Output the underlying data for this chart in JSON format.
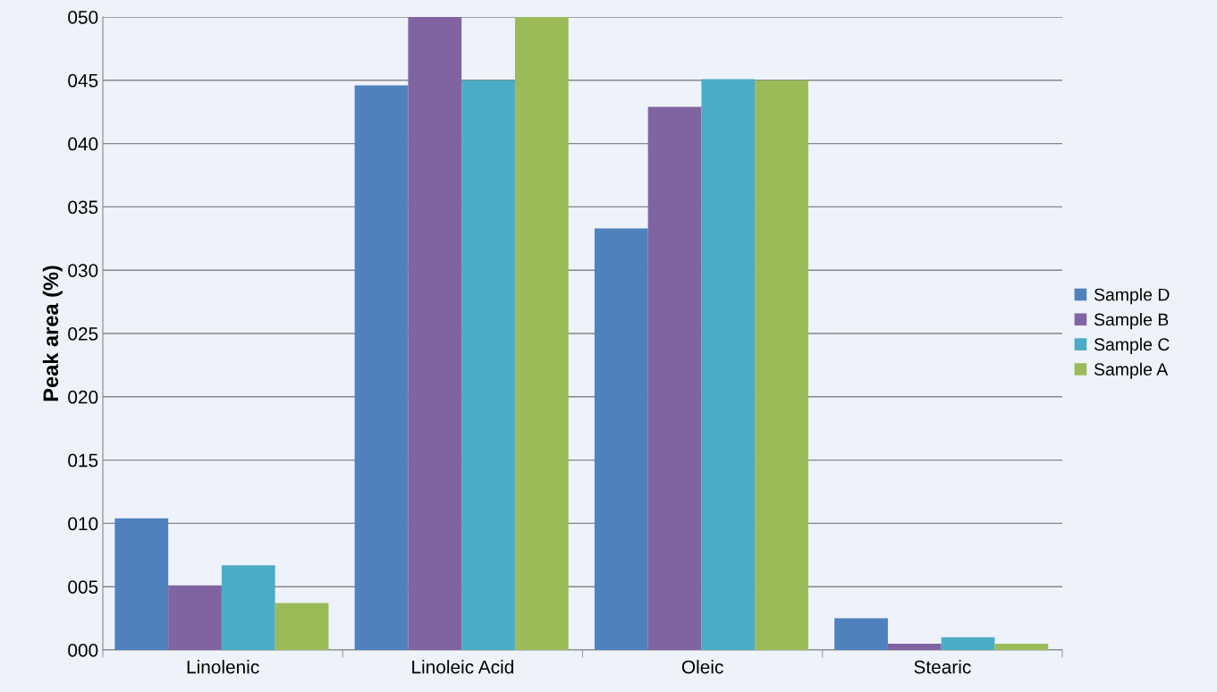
{
  "chart_data": {
    "type": "bar",
    "ylabel": "Peak area (%)",
    "categories": [
      "Linolenic",
      "Linoleic Acid",
      "Oleic",
      "Stearic"
    ],
    "series": [
      {
        "name": "Sample D",
        "color": "#4f81bd",
        "values": [
          10.4,
          44.6,
          33.3,
          2.5
        ]
      },
      {
        "name": "Sample B",
        "color": "#8064a2",
        "values": [
          5.1,
          50,
          42.9,
          0.5
        ]
      },
      {
        "name": "Sample C",
        "color": "#4bacc6",
        "values": [
          6.7,
          45,
          45.1,
          1.0
        ]
      },
      {
        "name": "Sample A",
        "color": "#9bbb59",
        "values": [
          3.7,
          50,
          45,
          0.5
        ]
      }
    ],
    "ylim": [
      0,
      50
    ],
    "yticks": [
      {
        "value": 0,
        "label": "000"
      },
      {
        "value": 5,
        "label": "005"
      },
      {
        "value": 10,
        "label": "010"
      },
      {
        "value": 15,
        "label": "015"
      },
      {
        "value": 20,
        "label": "020"
      },
      {
        "value": 25,
        "label": "025"
      },
      {
        "value": 30,
        "label": "030"
      },
      {
        "value": 35,
        "label": "035"
      },
      {
        "value": 40,
        "label": "040"
      },
      {
        "value": 45,
        "label": "045"
      },
      {
        "value": 50,
        "label": "050"
      }
    ],
    "grid": "y",
    "legend": "right"
  }
}
